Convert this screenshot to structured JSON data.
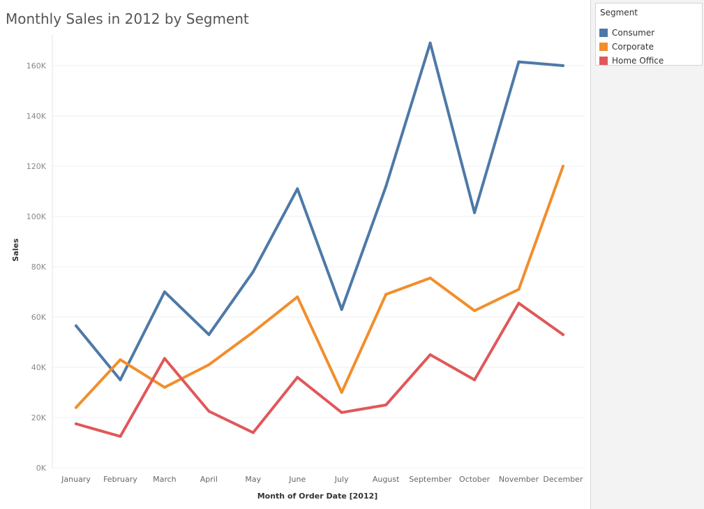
{
  "chart_data": {
    "type": "line",
    "title": "Monthly Sales in 2012 by Segment",
    "xlabel": "Month of Order Date [2012]",
    "ylabel": "Sales",
    "categories": [
      "January",
      "February",
      "March",
      "April",
      "May",
      "June",
      "July",
      "August",
      "September",
      "October",
      "November",
      "December"
    ],
    "ylim": [
      0,
      175000
    ],
    "yticks": [
      0,
      20000,
      40000,
      60000,
      80000,
      100000,
      120000,
      140000,
      160000
    ],
    "ytick_labels": [
      "0K",
      "20K",
      "40K",
      "60K",
      "80K",
      "100K",
      "120K",
      "140K",
      "160K"
    ],
    "grid": true,
    "legend_position": "right",
    "series": [
      {
        "name": "Consumer",
        "color": "#4e79a7",
        "values": [
          56500,
          35000,
          70000,
          53000,
          78000,
          111000,
          63000,
          112000,
          169000,
          101500,
          161500,
          160000
        ]
      },
      {
        "name": "Corporate",
        "color": "#f28e2b",
        "values": [
          24000,
          43000,
          32000,
          41000,
          54000,
          68000,
          30000,
          69000,
          75500,
          62500,
          71000,
          120000
        ]
      },
      {
        "name": "Home Office",
        "color": "#e15759",
        "values": [
          17500,
          12500,
          43500,
          22500,
          14000,
          36000,
          22000,
          25000,
          45000,
          35000,
          65500,
          53000
        ]
      }
    ]
  },
  "legend": {
    "title": "Segment",
    "items": [
      {
        "label": "Consumer",
        "color": "#4e79a7"
      },
      {
        "label": "Corporate",
        "color": "#f28e2b"
      },
      {
        "label": "Home Office",
        "color": "#e15759"
      }
    ]
  }
}
